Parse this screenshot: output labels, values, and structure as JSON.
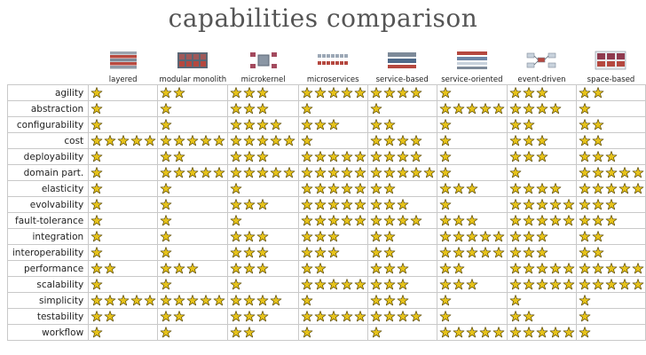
{
  "title": "capabilities comparison",
  "columns": [
    {
      "label": "layered",
      "icon": "layered-architecture-icon"
    },
    {
      "label": "modular monolith",
      "icon": "modular-monolith-icon"
    },
    {
      "label": "microkernel",
      "icon": "microkernel-icon"
    },
    {
      "label": "microservices",
      "icon": "microservices-icon"
    },
    {
      "label": "service-based",
      "icon": "service-based-icon"
    },
    {
      "label": "service-oriented",
      "icon": "service-oriented-icon"
    },
    {
      "label": "event-driven",
      "icon": "event-driven-icon"
    },
    {
      "label": "space-based",
      "icon": "space-based-icon"
    }
  ],
  "rows": [
    {
      "label": "agility",
      "ratings": [
        1,
        2,
        3,
        5,
        4,
        1,
        3,
        2
      ]
    },
    {
      "label": "abstraction",
      "ratings": [
        1,
        1,
        3,
        1,
        1,
        5,
        4,
        1
      ]
    },
    {
      "label": "configurability",
      "ratings": [
        1,
        1,
        4,
        3,
        2,
        1,
        2,
        2
      ]
    },
    {
      "label": "cost",
      "ratings": [
        5,
        5,
        5,
        1,
        4,
        1,
        3,
        2
      ]
    },
    {
      "label": "deployability",
      "ratings": [
        1,
        2,
        3,
        5,
        4,
        1,
        3,
        3
      ]
    },
    {
      "label": "domain part.",
      "ratings": [
        1,
        5,
        5,
        5,
        5,
        1,
        1,
        5
      ]
    },
    {
      "label": "elasticity",
      "ratings": [
        1,
        1,
        1,
        5,
        2,
        3,
        4,
        5
      ]
    },
    {
      "label": "evolvability",
      "ratings": [
        1,
        1,
        3,
        5,
        3,
        1,
        5,
        3
      ]
    },
    {
      "label": "fault-tolerance",
      "ratings": [
        1,
        1,
        1,
        5,
        4,
        3,
        5,
        3
      ]
    },
    {
      "label": "integration",
      "ratings": [
        1,
        1,
        3,
        3,
        2,
        5,
        3,
        2
      ]
    },
    {
      "label": "interoperability",
      "ratings": [
        1,
        1,
        3,
        3,
        2,
        5,
        3,
        2
      ]
    },
    {
      "label": "performance",
      "ratings": [
        2,
        3,
        3,
        2,
        3,
        2,
        5,
        5
      ]
    },
    {
      "label": "scalability",
      "ratings": [
        1,
        1,
        1,
        5,
        3,
        3,
        5,
        5
      ]
    },
    {
      "label": "simplicity",
      "ratings": [
        5,
        5,
        4,
        1,
        3,
        1,
        1,
        1
      ]
    },
    {
      "label": "testability",
      "ratings": [
        2,
        2,
        3,
        5,
        4,
        1,
        2,
        1
      ]
    },
    {
      "label": "workflow",
      "ratings": [
        1,
        1,
        2,
        1,
        1,
        5,
        5,
        1
      ]
    }
  ],
  "colors": {
    "star_fill": "#e6c21a",
    "star_stroke": "#5a4a05",
    "grid_line": "#c9c9c9"
  }
}
